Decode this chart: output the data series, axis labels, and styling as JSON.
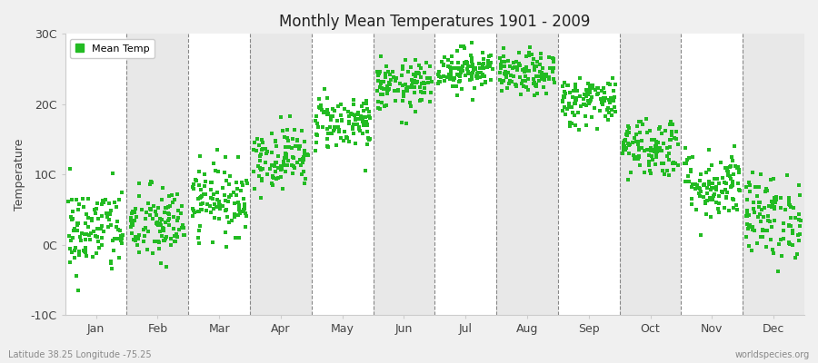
{
  "title": "Monthly Mean Temperatures 1901 - 2009",
  "ylabel": "Temperature",
  "bottom_left_text": "Latitude 38.25 Longitude -75.25",
  "bottom_right_text": "worldspecies.org",
  "legend_label": "Mean Temp",
  "dot_color": "#22bb22",
  "background_color": "#f0f0f0",
  "plot_bg_color": "#ffffff",
  "stripe_color": "#e8e8e8",
  "ylim": [
    -10,
    30
  ],
  "yticks": [
    -10,
    0,
    10,
    20,
    30
  ],
  "ytick_labels": [
    "-10C",
    "0C",
    "10C",
    "20C",
    "30C"
  ],
  "month_names": [
    "Jan",
    "Feb",
    "Mar",
    "Apr",
    "May",
    "Jun",
    "Jul",
    "Aug",
    "Sep",
    "Oct",
    "Nov",
    "Dec"
  ],
  "monthly_mean_temps": [
    2.0,
    2.8,
    6.5,
    12.5,
    17.5,
    22.5,
    25.0,
    24.2,
    20.5,
    14.0,
    8.5,
    4.0
  ],
  "monthly_std": [
    3.2,
    2.8,
    2.5,
    2.2,
    2.0,
    1.8,
    1.5,
    1.5,
    1.8,
    2.2,
    2.5,
    3.0
  ],
  "n_years": 109,
  "seed": 42,
  "dot_size": 8
}
